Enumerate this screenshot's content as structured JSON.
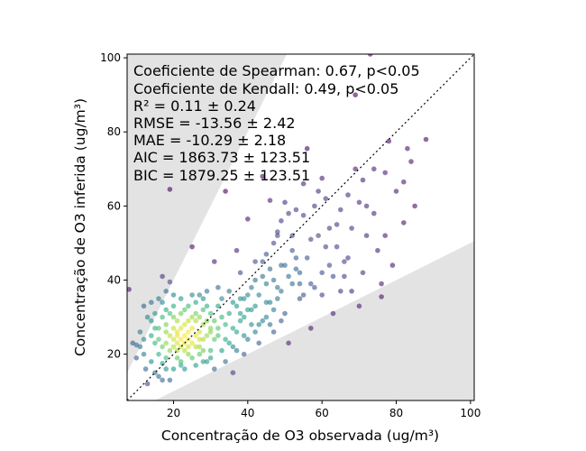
{
  "chart_data": {
    "type": "scatter",
    "title": "",
    "xlabel": "Concentração de O3 observada (ug/m³)",
    "ylabel": "Concentração de O3 inferida (ug/m³)",
    "xlim": [
      7.5,
      101
    ],
    "ylim": [
      7.5,
      101
    ],
    "xticks": [
      20,
      40,
      60,
      80,
      100
    ],
    "yticks": [
      20,
      40,
      60,
      80,
      100
    ],
    "grid": false,
    "colormap": "viridis (point density)",
    "reference_line": {
      "style": "dotted",
      "color": "#000000",
      "slope": 1,
      "intercept": 0
    },
    "shaded_regions": {
      "color": "#e3e3e3",
      "upper_slope": 2,
      "lower_slope": 0.5
    },
    "annotations": [
      "Coeficiente de Spearman: 0.67, p<0.05",
      "Coeficiente de Kendall: 0.49, p<0.05",
      "R² = 0.11 ± 0.24",
      "RMSE = -13.56 ± 2.42",
      "MAE = -10.29 ± 2.18",
      "AIC = 1863.73 ± 123.51",
      "BIC = 1879.25 ± 123.51"
    ],
    "points": [
      [
        8,
        37.5
      ],
      [
        10,
        22.5
      ],
      [
        11,
        26
      ],
      [
        12,
        33
      ],
      [
        13,
        12
      ],
      [
        12,
        20
      ],
      [
        12.5,
        16
      ],
      [
        14,
        25
      ],
      [
        14,
        29
      ],
      [
        15,
        31
      ],
      [
        16,
        35
      ],
      [
        16,
        20
      ],
      [
        17,
        34
      ],
      [
        17,
        41
      ],
      [
        17,
        17.5
      ],
      [
        18,
        37
      ],
      [
        18,
        23
      ],
      [
        18,
        28
      ],
      [
        19,
        39.5
      ],
      [
        19,
        64.5
      ],
      [
        19,
        13
      ],
      [
        20,
        16
      ],
      [
        20,
        30
      ],
      [
        20,
        33
      ],
      [
        21,
        26
      ],
      [
        21,
        21
      ],
      [
        22,
        35
      ],
      [
        22,
        18
      ],
      [
        23,
        32
      ],
      [
        24,
        29
      ],
      [
        24,
        22
      ],
      [
        25,
        49
      ],
      [
        25,
        36
      ],
      [
        26,
        31
      ],
      [
        27,
        24
      ],
      [
        28,
        35
      ],
      [
        28,
        18
      ],
      [
        29,
        33
      ],
      [
        30,
        21
      ],
      [
        31,
        45
      ],
      [
        32,
        38
      ],
      [
        32,
        27
      ],
      [
        33,
        30
      ],
      [
        34,
        64
      ],
      [
        35,
        23
      ],
      [
        35,
        37
      ],
      [
        36,
        15
      ],
      [
        36,
        34
      ],
      [
        37,
        48
      ],
      [
        37,
        26
      ],
      [
        38,
        42
      ],
      [
        38,
        31
      ],
      [
        39,
        20
      ],
      [
        40,
        56.5
      ],
      [
        40,
        36
      ],
      [
        41,
        28
      ],
      [
        42,
        40
      ],
      [
        42,
        33
      ],
      [
        43,
        23
      ],
      [
        44,
        68
      ],
      [
        44,
        45
      ],
      [
        45,
        39
      ],
      [
        45,
        30
      ],
      [
        46,
        61.5
      ],
      [
        46,
        34
      ],
      [
        47,
        26
      ],
      [
        47,
        50
      ],
      [
        48,
        53
      ],
      [
        49,
        44
      ],
      [
        49,
        37
      ],
      [
        50,
        61
      ],
      [
        50,
        31
      ],
      [
        51,
        23
      ],
      [
        52,
        48
      ],
      [
        52,
        39
      ],
      [
        53,
        59
      ],
      [
        54,
        42
      ],
      [
        54,
        35
      ],
      [
        55,
        66
      ],
      [
        55,
        57.5
      ],
      [
        56,
        75.5
      ],
      [
        56,
        46
      ],
      [
        57,
        27
      ],
      [
        58,
        60
      ],
      [
        58,
        38
      ],
      [
        59,
        64
      ],
      [
        60,
        67.5
      ],
      [
        60,
        42
      ],
      [
        61,
        62
      ],
      [
        62,
        54
      ],
      [
        63,
        31
      ],
      [
        63,
        41
      ],
      [
        64,
        49
      ],
      [
        65,
        59
      ],
      [
        65,
        37
      ],
      [
        67,
        46
      ],
      [
        68,
        54
      ],
      [
        69,
        70
      ],
      [
        69,
        90
      ],
      [
        70,
        61
      ],
      [
        70,
        33
      ],
      [
        71,
        67
      ],
      [
        72,
        52
      ],
      [
        73,
        101
      ],
      [
        74,
        70
      ],
      [
        76,
        39
      ],
      [
        76,
        35.5
      ],
      [
        77,
        69
      ],
      [
        78,
        77.5
      ],
      [
        80,
        64
      ],
      [
        82,
        55.5
      ],
      [
        82,
        66.5
      ],
      [
        83,
        75.5
      ],
      [
        84,
        72
      ],
      [
        88,
        78
      ],
      [
        16,
        24
      ],
      [
        17,
        22
      ],
      [
        18,
        26
      ],
      [
        19,
        21
      ],
      [
        20,
        24
      ],
      [
        20,
        27
      ],
      [
        21,
        23
      ],
      [
        21,
        25
      ],
      [
        22,
        22
      ],
      [
        22,
        24
      ],
      [
        22,
        27
      ],
      [
        23,
        21
      ],
      [
        23,
        23
      ],
      [
        23,
        25
      ],
      [
        24,
        24
      ],
      [
        24,
        26
      ],
      [
        25,
        23
      ],
      [
        25,
        27
      ],
      [
        26,
        25
      ],
      [
        26,
        29
      ],
      [
        27,
        26
      ],
      [
        27,
        22
      ],
      [
        28,
        28
      ],
      [
        29,
        25
      ],
      [
        30,
        27
      ],
      [
        18,
        19
      ],
      [
        19,
        25
      ],
      [
        20,
        22
      ],
      [
        21,
        29
      ],
      [
        22,
        31
      ],
      [
        23,
        28
      ],
      [
        24,
        20
      ],
      [
        25,
        30
      ],
      [
        26,
        22
      ],
      [
        27,
        30
      ],
      [
        28,
        24
      ],
      [
        29,
        29
      ],
      [
        30,
        31
      ],
      [
        31,
        29
      ],
      [
        32,
        25
      ],
      [
        24,
        33
      ],
      [
        15,
        23
      ],
      [
        16,
        27
      ],
      [
        17,
        30
      ],
      [
        18,
        32
      ],
      [
        26,
        34
      ],
      [
        27,
        36
      ],
      [
        28,
        32
      ],
      [
        29,
        37
      ],
      [
        30,
        26
      ],
      [
        31,
        24
      ],
      [
        32,
        33
      ],
      [
        33,
        35
      ],
      [
        34,
        28
      ],
      [
        35,
        31
      ],
      [
        36,
        27
      ],
      [
        37,
        33
      ],
      [
        38,
        29
      ],
      [
        39,
        35
      ],
      [
        40,
        24
      ],
      [
        41,
        32
      ],
      [
        43,
        36
      ],
      [
        44,
        29
      ],
      [
        45,
        34
      ],
      [
        46,
        28
      ],
      [
        47,
        32
      ],
      [
        48,
        35
      ],
      [
        49,
        29
      ],
      [
        19,
        31
      ],
      [
        20,
        36
      ],
      [
        21,
        19
      ],
      [
        22,
        17
      ],
      [
        23,
        16
      ],
      [
        25,
        19
      ],
      [
        26,
        17
      ],
      [
        27,
        20
      ],
      [
        28,
        21
      ],
      [
        29,
        18
      ],
      [
        30,
        19
      ],
      [
        33,
        21
      ],
      [
        34,
        24
      ],
      [
        36,
        22
      ],
      [
        37,
        21
      ],
      [
        39,
        25
      ],
      [
        42,
        26
      ],
      [
        43,
        28
      ],
      [
        41,
        38
      ],
      [
        44,
        41
      ],
      [
        46,
        43
      ],
      [
        47,
        40
      ],
      [
        48,
        38
      ],
      [
        50,
        44
      ],
      [
        51,
        41
      ],
      [
        53,
        46
      ],
      [
        54,
        39
      ],
      [
        51,
        58
      ],
      [
        52,
        52
      ],
      [
        57,
        51
      ],
      [
        60,
        36
      ],
      [
        62,
        44
      ],
      [
        66,
        41
      ],
      [
        68,
        37
      ],
      [
        72,
        60
      ],
      [
        74,
        58
      ],
      [
        79,
        44
      ],
      [
        85,
        60
      ],
      [
        13,
        30
      ],
      [
        14,
        34
      ],
      [
        15,
        27
      ],
      [
        11,
        22
      ],
      [
        12,
        24
      ],
      [
        9,
        23
      ],
      [
        10,
        19
      ],
      [
        14,
        18
      ],
      [
        15,
        15
      ],
      [
        16,
        14
      ],
      [
        17,
        13
      ],
      [
        18,
        16
      ],
      [
        31,
        16
      ],
      [
        34,
        18
      ],
      [
        38,
        35
      ],
      [
        39,
        30
      ],
      [
        40,
        32
      ],
      [
        42,
        45
      ],
      [
        45,
        47
      ],
      [
        48,
        52
      ],
      [
        49,
        56
      ],
      [
        53,
        43
      ],
      [
        55,
        36
      ],
      [
        57,
        39
      ],
      [
        59,
        52
      ],
      [
        61,
        49
      ],
      [
        64,
        55
      ],
      [
        66,
        45
      ],
      [
        67,
        63
      ],
      [
        71,
        42
      ],
      [
        75,
        48
      ],
      [
        77,
        52
      ]
    ]
  }
}
